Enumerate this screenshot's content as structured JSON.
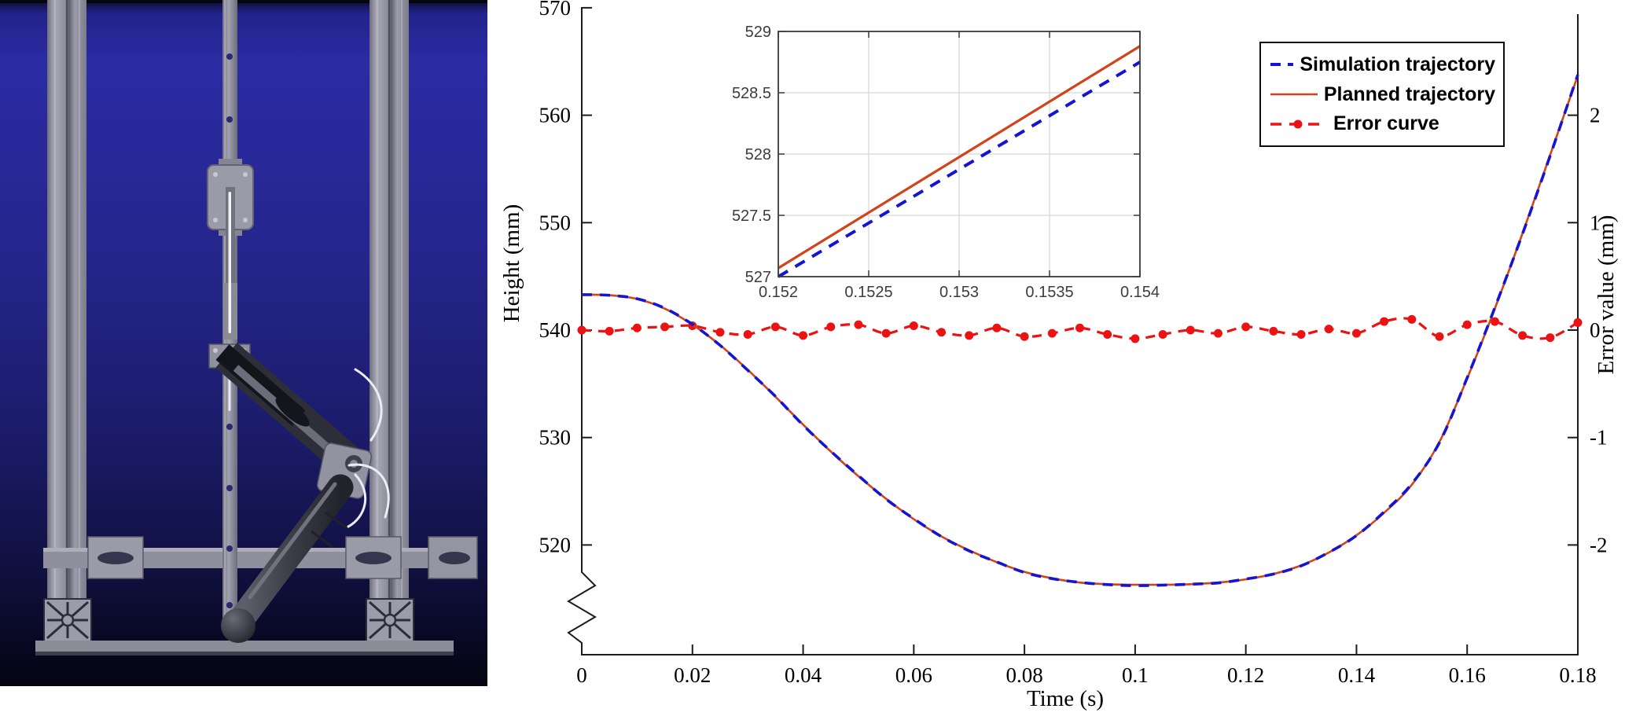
{
  "figure": {
    "left_panel": {
      "description": "3D CAD render of a single-leg hopping robot mounted on a vertical-rail test rig",
      "elements": [
        "left-extrusion-rail",
        "right-extrusion-rail",
        "central-guide-column",
        "linear-carriage",
        "guide-rod",
        "hip-bracket",
        "thigh-link-motor",
        "knee-joint",
        "shank-cylinder",
        "foot-ball",
        "cross-beam",
        "base-plate",
        "wires"
      ]
    },
    "chart": {
      "xlabel": "Time (s)",
      "ylabel_left": "Height (mm)",
      "ylabel_right": "Error value (mm)"
    }
  },
  "chart_data": {
    "type": "line",
    "title": "",
    "xlabel": "Time (s)",
    "ylabel_left": "Height (mm)",
    "ylabel_right": "Error value (mm)",
    "xlim": [
      0,
      0.18
    ],
    "ylim_left_shown": [
      520,
      570
    ],
    "ylim_right": [
      -2.5,
      2.5
    ],
    "axis_break": "left axis broken between 0 and 520 (zigzag symbol near origin)",
    "grid": false,
    "legend_position": "top-right, boxed",
    "x_ticks": [
      "0",
      "0.02",
      "0.04",
      "0.06",
      "0.08",
      "0.1",
      "0.12",
      "0.14",
      "0.16",
      "0.18"
    ],
    "y_ticks_left": [
      "570",
      "560",
      "550",
      "540",
      "530",
      "520"
    ],
    "y_ticks_left_values": [
      570,
      560,
      550,
      540,
      530,
      520
    ],
    "y_ticks_right": [
      "2",
      "1",
      "0",
      "-1",
      "-2"
    ],
    "y_ticks_right_values": [
      2,
      1,
      0,
      -1,
      -2
    ],
    "t": [
      0,
      0.005,
      0.01,
      0.015,
      0.02,
      0.025,
      0.03,
      0.035,
      0.04,
      0.045,
      0.05,
      0.055,
      0.06,
      0.065,
      0.07,
      0.075,
      0.08,
      0.085,
      0.09,
      0.095,
      0.1,
      0.105,
      0.11,
      0.115,
      0.12,
      0.125,
      0.13,
      0.135,
      0.14,
      0.145,
      0.15,
      0.155,
      0.16,
      0.165,
      0.17,
      0.175,
      0.18
    ],
    "series": [
      {
        "name": "Simulation trajectory",
        "axis": "left",
        "color": "#1414d2",
        "style": "dashed",
        "note": "planned height plus error value"
      },
      {
        "name": "Planned trajectory",
        "axis": "left",
        "color": "#d2431a",
        "style": "solid",
        "values_mm": [
          543.3,
          543.25,
          542.9,
          542.0,
          540.5,
          538.6,
          536.3,
          533.8,
          531.2,
          528.7,
          526.4,
          524.3,
          522.4,
          520.8,
          519.5,
          518.4,
          517.5,
          516.9,
          516.5,
          516.35,
          516.3,
          516.3,
          516.35,
          516.5,
          516.8,
          517.3,
          518.1,
          519.3,
          520.9,
          523.0,
          525.6,
          529.6,
          535.5,
          542.0,
          549.0,
          556.3,
          563.7
        ]
      },
      {
        "name": "Error curve",
        "axis": "right",
        "color": "#ee1111",
        "style": "dashed-dot-markers",
        "values_mm": [
          0.0,
          -0.01,
          0.02,
          0.03,
          0.04,
          -0.02,
          -0.04,
          0.03,
          -0.05,
          0.03,
          0.05,
          -0.03,
          0.04,
          -0.02,
          -0.05,
          0.02,
          -0.06,
          -0.03,
          0.02,
          -0.04,
          -0.08,
          -0.04,
          0.0,
          -0.03,
          0.03,
          -0.01,
          -0.04,
          0.01,
          -0.03,
          0.08,
          0.1,
          -0.06,
          0.05,
          0.08,
          -0.05,
          -0.07,
          0.07
        ]
      }
    ],
    "inset": {
      "description": "zoom window on rising part of trajectories",
      "xlim": [
        0.152,
        0.154
      ],
      "ylim": [
        527,
        529
      ],
      "x_ticks": [
        "0.152",
        "0.1525",
        "0.153",
        "0.1535",
        "0.154"
      ],
      "x_ticks_values": [
        0.152,
        0.1525,
        0.153,
        0.1535,
        0.154
      ],
      "y_ticks": [
        "527",
        "527.5",
        "528",
        "528.5",
        "529"
      ],
      "y_ticks_values": [
        527,
        527.5,
        528,
        528.5,
        529
      ],
      "grid": true,
      "planned": {
        "x": [
          0.152,
          0.154
        ],
        "y": [
          527.07,
          528.88
        ]
      },
      "simulation": {
        "x": [
          0.152,
          0.154
        ],
        "y": [
          527.0,
          528.75
        ]
      }
    }
  },
  "colors": {
    "simulation_blue": "#1414d2",
    "planned_orange": "#d2431a",
    "error_red": "#ee1111",
    "axis": "#1c1c1c",
    "inset_grid": "#d8d8d8"
  }
}
